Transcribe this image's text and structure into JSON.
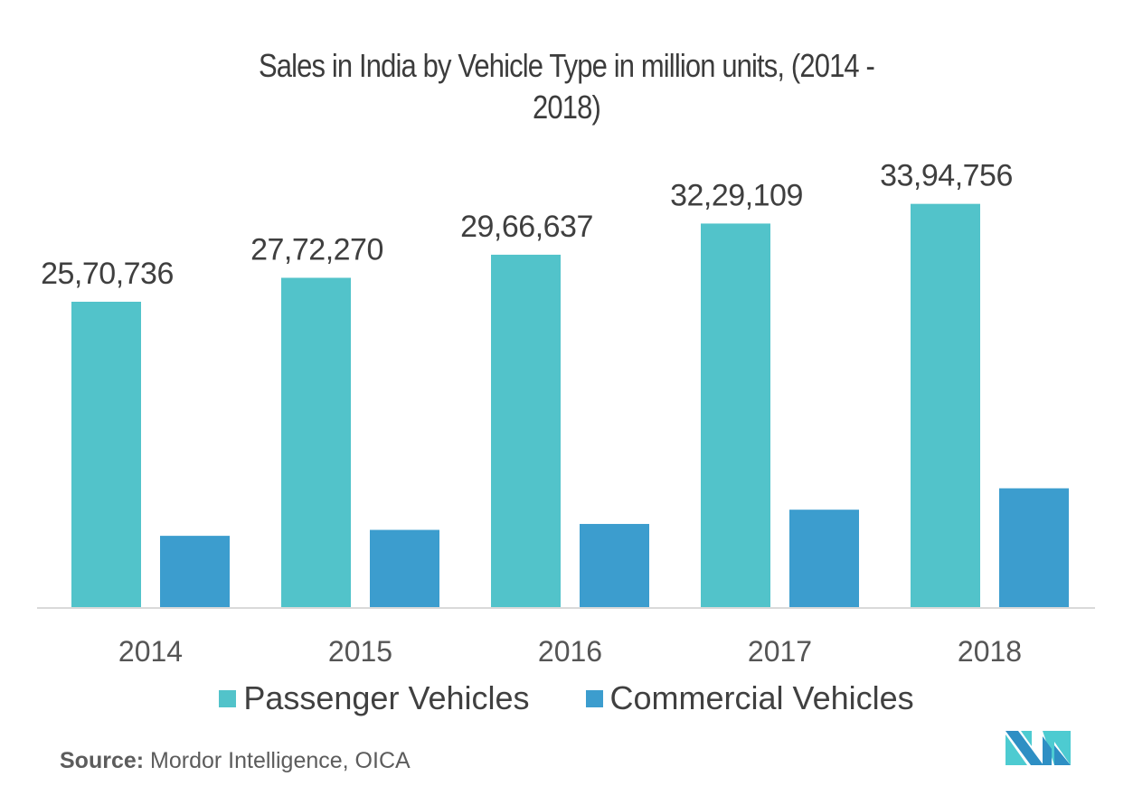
{
  "title_lines": [
    "Sales in India by Vehicle Type in million units, (2014 -",
    "2018)"
  ],
  "colors": {
    "passenger": "#52C3CA",
    "commercial": "#3C9DCE",
    "axis": "#d9d9d9"
  },
  "legend": [
    {
      "label": "Passenger Vehicles",
      "color": "#52C3CA"
    },
    {
      "label": "Commercial Vehicles",
      "color": "#3C9DCE"
    }
  ],
  "source": {
    "label": "Source:",
    "text": "Mordor Intelligence, OICA"
  },
  "logo": {
    "icon": "mordor-intelligence-logo-icon"
  },
  "chart_data": {
    "type": "bar",
    "title": "Sales in India by Vehicle Type in million units, (2014 - 2018)",
    "xlabel": "",
    "ylabel": "",
    "categories": [
      "2014",
      "2015",
      "2016",
      "2017",
      "2018"
    ],
    "series": [
      {
        "name": "Passenger Vehicles",
        "values": [
          2570736,
          2772270,
          2966637,
          3229109,
          3394756
        ],
        "labels": [
          "25,70,736",
          "27,72,270",
          "29,66,637",
          "32,29,109",
          "33,94,756"
        ]
      },
      {
        "name": "Commercial Vehicles",
        "values": [
          600000,
          650000,
          700000,
          820000,
          1000000
        ],
        "labels": []
      }
    ],
    "ylim": [
      0,
      3400000
    ],
    "grid": false,
    "y_axis_visible": false,
    "legend_position": "bottom"
  }
}
